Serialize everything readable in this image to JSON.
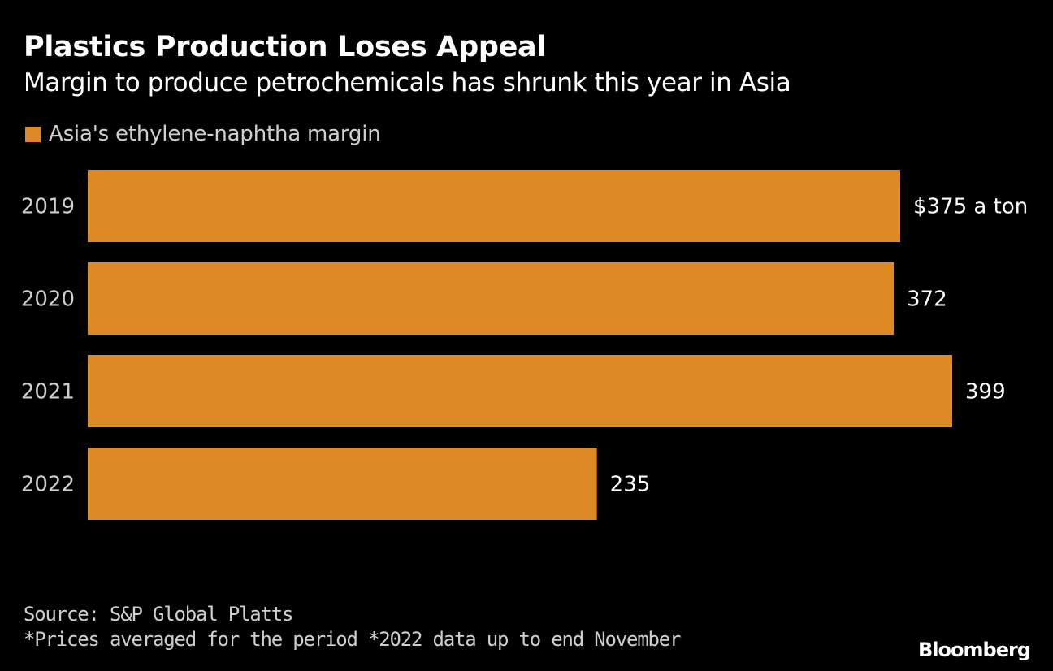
{
  "title": "Plastics Production Loses Appeal",
  "subtitle": "Margin to produce petrochemicals has shrunk this year in Asia",
  "legend": {
    "label": "Asia's ethylene-naphtha margin",
    "color": "#de8a24"
  },
  "footer": {
    "source": "Source: S&P Global Platts",
    "note": "*Prices averaged for the period *2022 data up to end November",
    "logo": "Bloomberg"
  },
  "chart_data": {
    "type": "bar",
    "orientation": "horizontal",
    "categories": [
      "2019",
      "2020",
      "2021",
      "2022"
    ],
    "series": [
      {
        "name": "Asia's ethylene-naphtha margin",
        "values": [
          375,
          372,
          399,
          235
        ],
        "data_labels": [
          "$375 a ton",
          "372",
          "399",
          "235"
        ],
        "color": "#de8a24"
      }
    ],
    "xlim": [
      0,
      399
    ],
    "grid": false,
    "legend_position": "top-left"
  }
}
